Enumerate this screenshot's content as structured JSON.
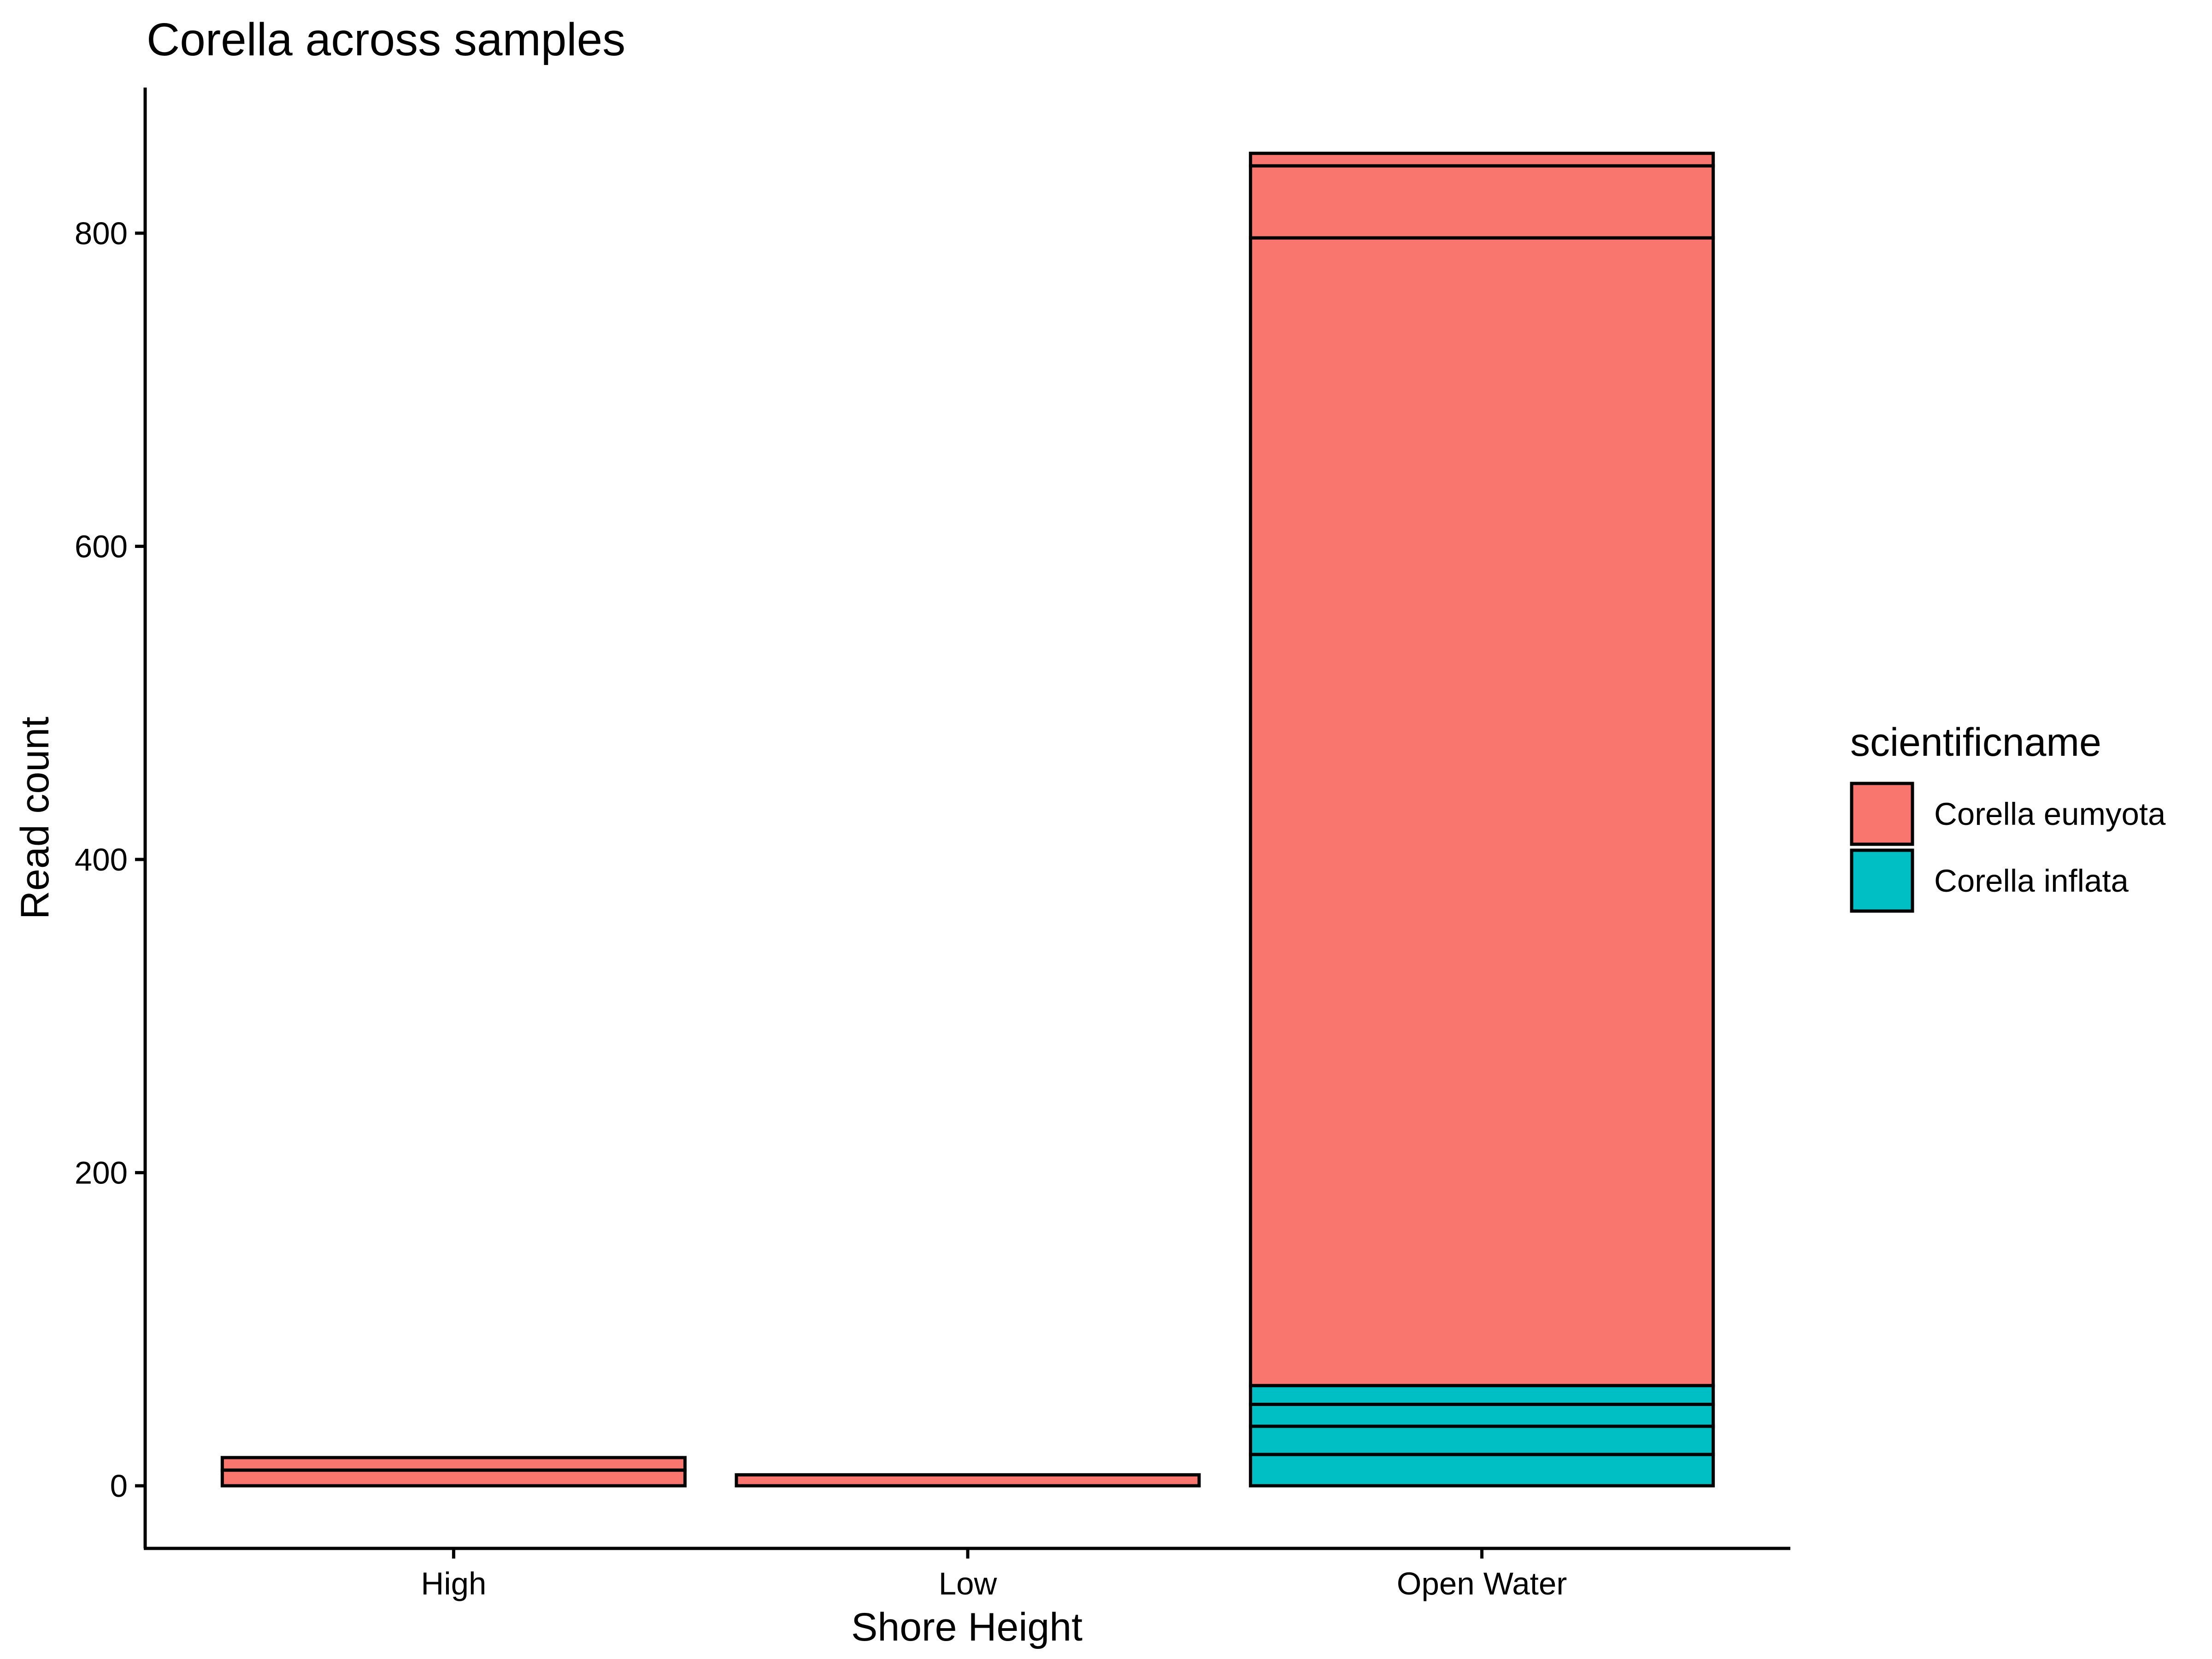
{
  "chart_data": {
    "type": "bar",
    "stacked": true,
    "title": "Corella across samples",
    "xlabel": "Shore Height",
    "ylabel": "Read count",
    "ylim": [
      -40,
      893
    ],
    "yticks": [
      0,
      200,
      400,
      600,
      800
    ],
    "categories": [
      "High",
      "Low",
      "Open Water"
    ],
    "colors": {
      "Corella eumyota": "#F8766D",
      "Corella inflata": "#00BFC4"
    },
    "legend": {
      "title": "scientificname",
      "position": "right",
      "entries": [
        "Corella eumyota",
        "Corella inflata"
      ]
    },
    "grid": false,
    "bars": [
      {
        "category": "High",
        "segments": [
          {
            "species": "Corella eumyota",
            "value": 10
          },
          {
            "species": "Corella eumyota",
            "value": 8
          }
        ]
      },
      {
        "category": "Low",
        "segments": [
          {
            "species": "Corella eumyota",
            "value": 7
          }
        ]
      },
      {
        "category": "Open Water",
        "segments": [
          {
            "species": "Corella inflata",
            "value": 20
          },
          {
            "species": "Corella inflata",
            "value": 18
          },
          {
            "species": "Corella inflata",
            "value": 14
          },
          {
            "species": "Corella inflata",
            "value": 12
          },
          {
            "species": "Corella eumyota",
            "value": 733
          },
          {
            "species": "Corella eumyota",
            "value": 46
          },
          {
            "species": "Corella eumyota",
            "value": 8
          }
        ]
      }
    ]
  }
}
